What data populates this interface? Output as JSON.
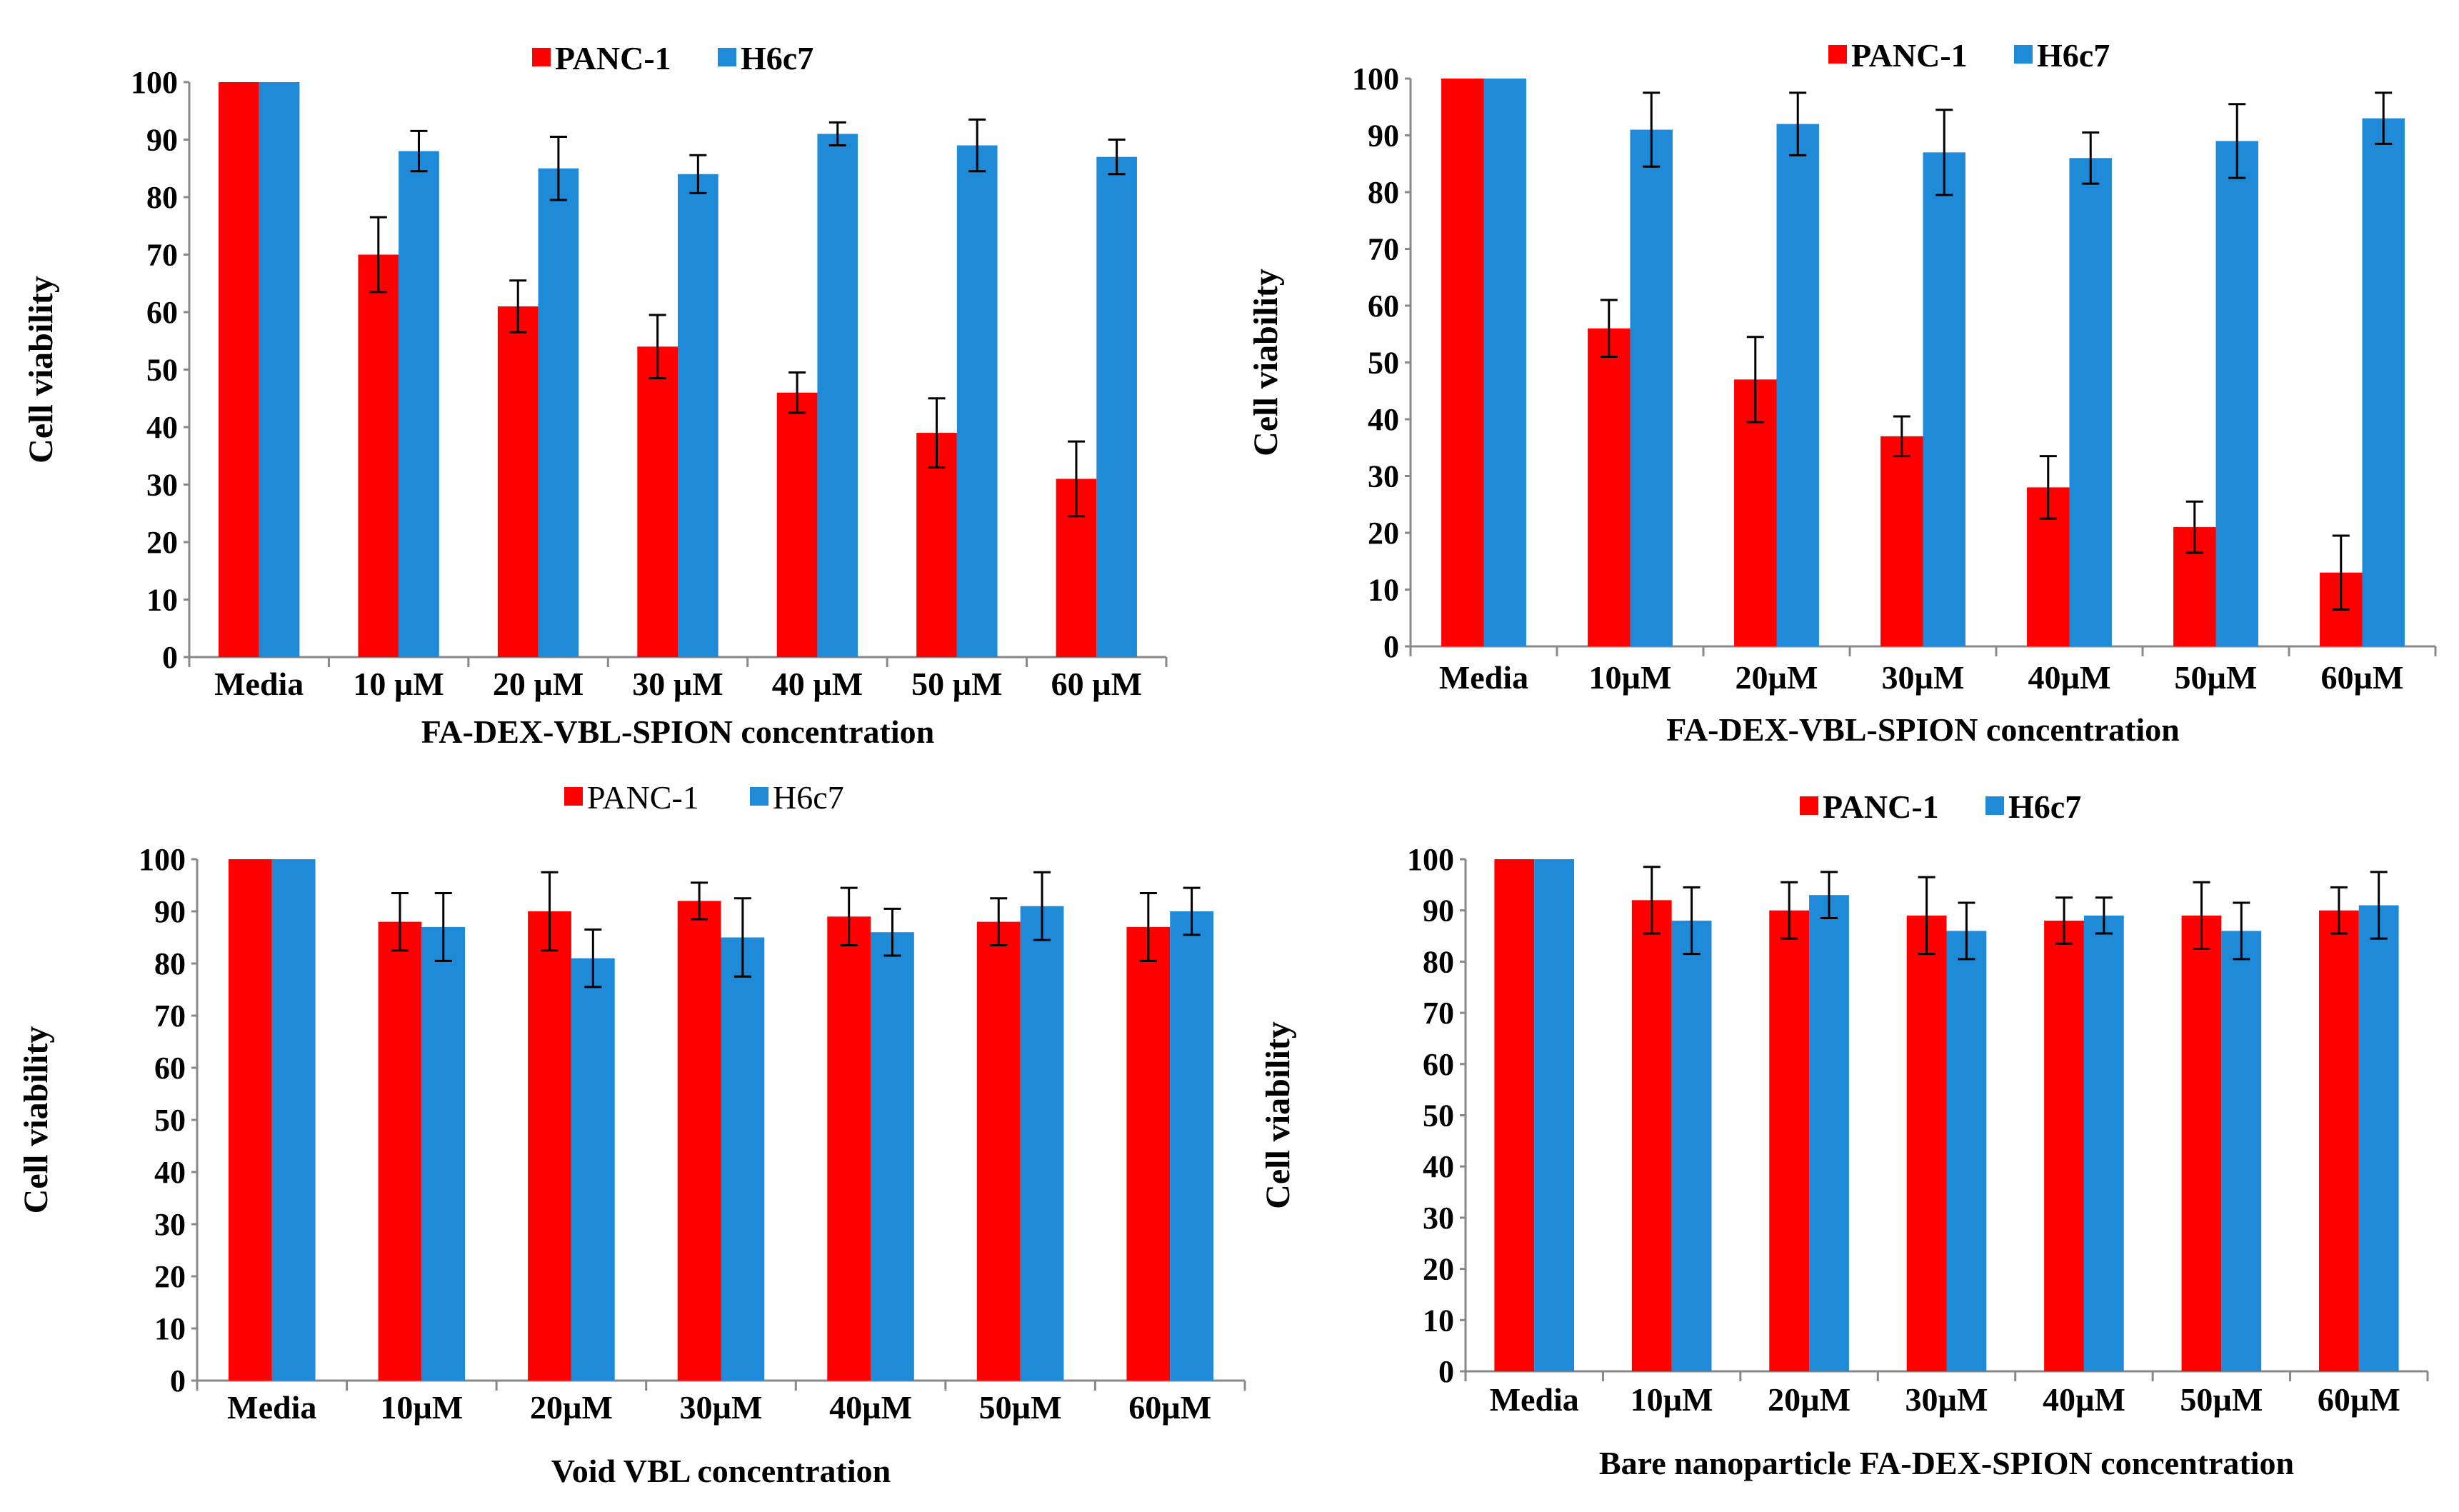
{
  "colors": {
    "PANC-1": "#ff0000",
    "H6c7": "#1f8ad8"
  },
  "chart_data": [
    {
      "type": "bar",
      "title": "",
      "xlabel": "FA-DEX-VBL-SPION concentration",
      "ylabel": "Cell viability",
      "ylim": [
        0,
        100
      ],
      "yticks": [
        "0",
        "10",
        "20",
        "30",
        "40",
        "50",
        "60",
        "70",
        "80",
        "90",
        "100"
      ],
      "categories": [
        "Media",
        "10 µM",
        "20 µM",
        "30 µM",
        "40 µM",
        "50 µM",
        "60 µM"
      ],
      "legend": {
        "placement": "top-center",
        "entries": [
          "PANC-1",
          "H6c7"
        ]
      },
      "grid": false,
      "series": [
        {
          "name": "PANC-1",
          "values": [
            100,
            70,
            61,
            54,
            46,
            39,
            31
          ],
          "errors": [
            0,
            6.5,
            4.5,
            5.5,
            3.5,
            6,
            6.5
          ]
        },
        {
          "name": "H6c7",
          "values": [
            100,
            88,
            85,
            84,
            91,
            89,
            87
          ],
          "errors": [
            0,
            3.5,
            5.5,
            3.3,
            2,
            4.5,
            3
          ]
        }
      ]
    },
    {
      "type": "bar",
      "title": "",
      "xlabel": "FA-DEX-VBL-SPION concentration",
      "ylabel": "Cell viability",
      "ylim": [
        0,
        100
      ],
      "yticks": [
        "0",
        "10",
        "20",
        "30",
        "40",
        "50",
        "60",
        "70",
        "80",
        "90",
        "100"
      ],
      "categories": [
        "Media",
        "10µM",
        "20µM",
        "30µM",
        "40µM",
        "50µM",
        "60µM"
      ],
      "legend": {
        "placement": "top-center",
        "entries": [
          "PANC-1",
          "H6c7"
        ]
      },
      "grid": false,
      "series": [
        {
          "name": "PANC-1",
          "values": [
            100,
            56,
            47,
            37,
            28,
            21,
            13
          ],
          "errors": [
            0,
            5,
            7.5,
            3.5,
            5.5,
            4.5,
            6.5
          ]
        },
        {
          "name": "H6c7",
          "values": [
            100,
            91,
            92,
            87,
            86,
            89,
            93
          ],
          "errors": [
            0,
            6.5,
            5.5,
            7.5,
            4.5,
            6.5,
            4.5
          ]
        }
      ]
    },
    {
      "type": "bar",
      "title": "",
      "xlabel": "Void VBL concentration",
      "ylabel": "Cell viability",
      "ylim": [
        0,
        100
      ],
      "yticks": [
        "0",
        "10",
        "20",
        "30",
        "40",
        "50",
        "60",
        "70",
        "80",
        "90",
        "100"
      ],
      "categories": [
        "Media",
        "10µM",
        "20µM",
        "30µM",
        "40µM",
        "50µM",
        "60µM"
      ],
      "legend": {
        "placement": "top-center",
        "entries": [
          "PANC-1",
          "H6c7"
        ]
      },
      "grid": false,
      "series": [
        {
          "name": "PANC-1",
          "values": [
            100,
            88,
            90,
            92,
            89,
            88,
            87
          ],
          "errors": [
            0,
            5.5,
            7.5,
            3.5,
            5.5,
            4.5,
            6.5
          ]
        },
        {
          "name": "H6c7",
          "values": [
            100,
            87,
            81,
            85,
            86,
            91,
            90
          ],
          "errors": [
            0,
            6.5,
            5.5,
            7.5,
            4.5,
            6.5,
            4.5
          ]
        }
      ]
    },
    {
      "type": "bar",
      "title": "",
      "xlabel": "Bare nanoparticle FA-DEX-SPION concentration",
      "ylabel": "Cell viability",
      "ylim": [
        0,
        100
      ],
      "yticks": [
        "0",
        "10",
        "20",
        "30",
        "40",
        "50",
        "60",
        "70",
        "80",
        "90",
        "100"
      ],
      "categories": [
        "Media",
        "10µM",
        "20µM",
        "30µM",
        "40µM",
        "50µM",
        "60µM"
      ],
      "legend": {
        "placement": "top-center",
        "entries": [
          "PANC-1",
          "H6c7"
        ]
      },
      "grid": false,
      "series": [
        {
          "name": "PANC-1",
          "values": [
            100,
            92,
            90,
            89,
            88,
            89,
            90
          ],
          "errors": [
            0,
            6.5,
            5.5,
            7.5,
            4.5,
            6.5,
            4.5
          ]
        },
        {
          "name": "H6c7",
          "values": [
            100,
            88,
            93,
            86,
            89,
            86,
            91
          ],
          "errors": [
            0,
            6.5,
            4.5,
            5.5,
            3.5,
            5.5,
            6.5
          ]
        }
      ]
    }
  ]
}
